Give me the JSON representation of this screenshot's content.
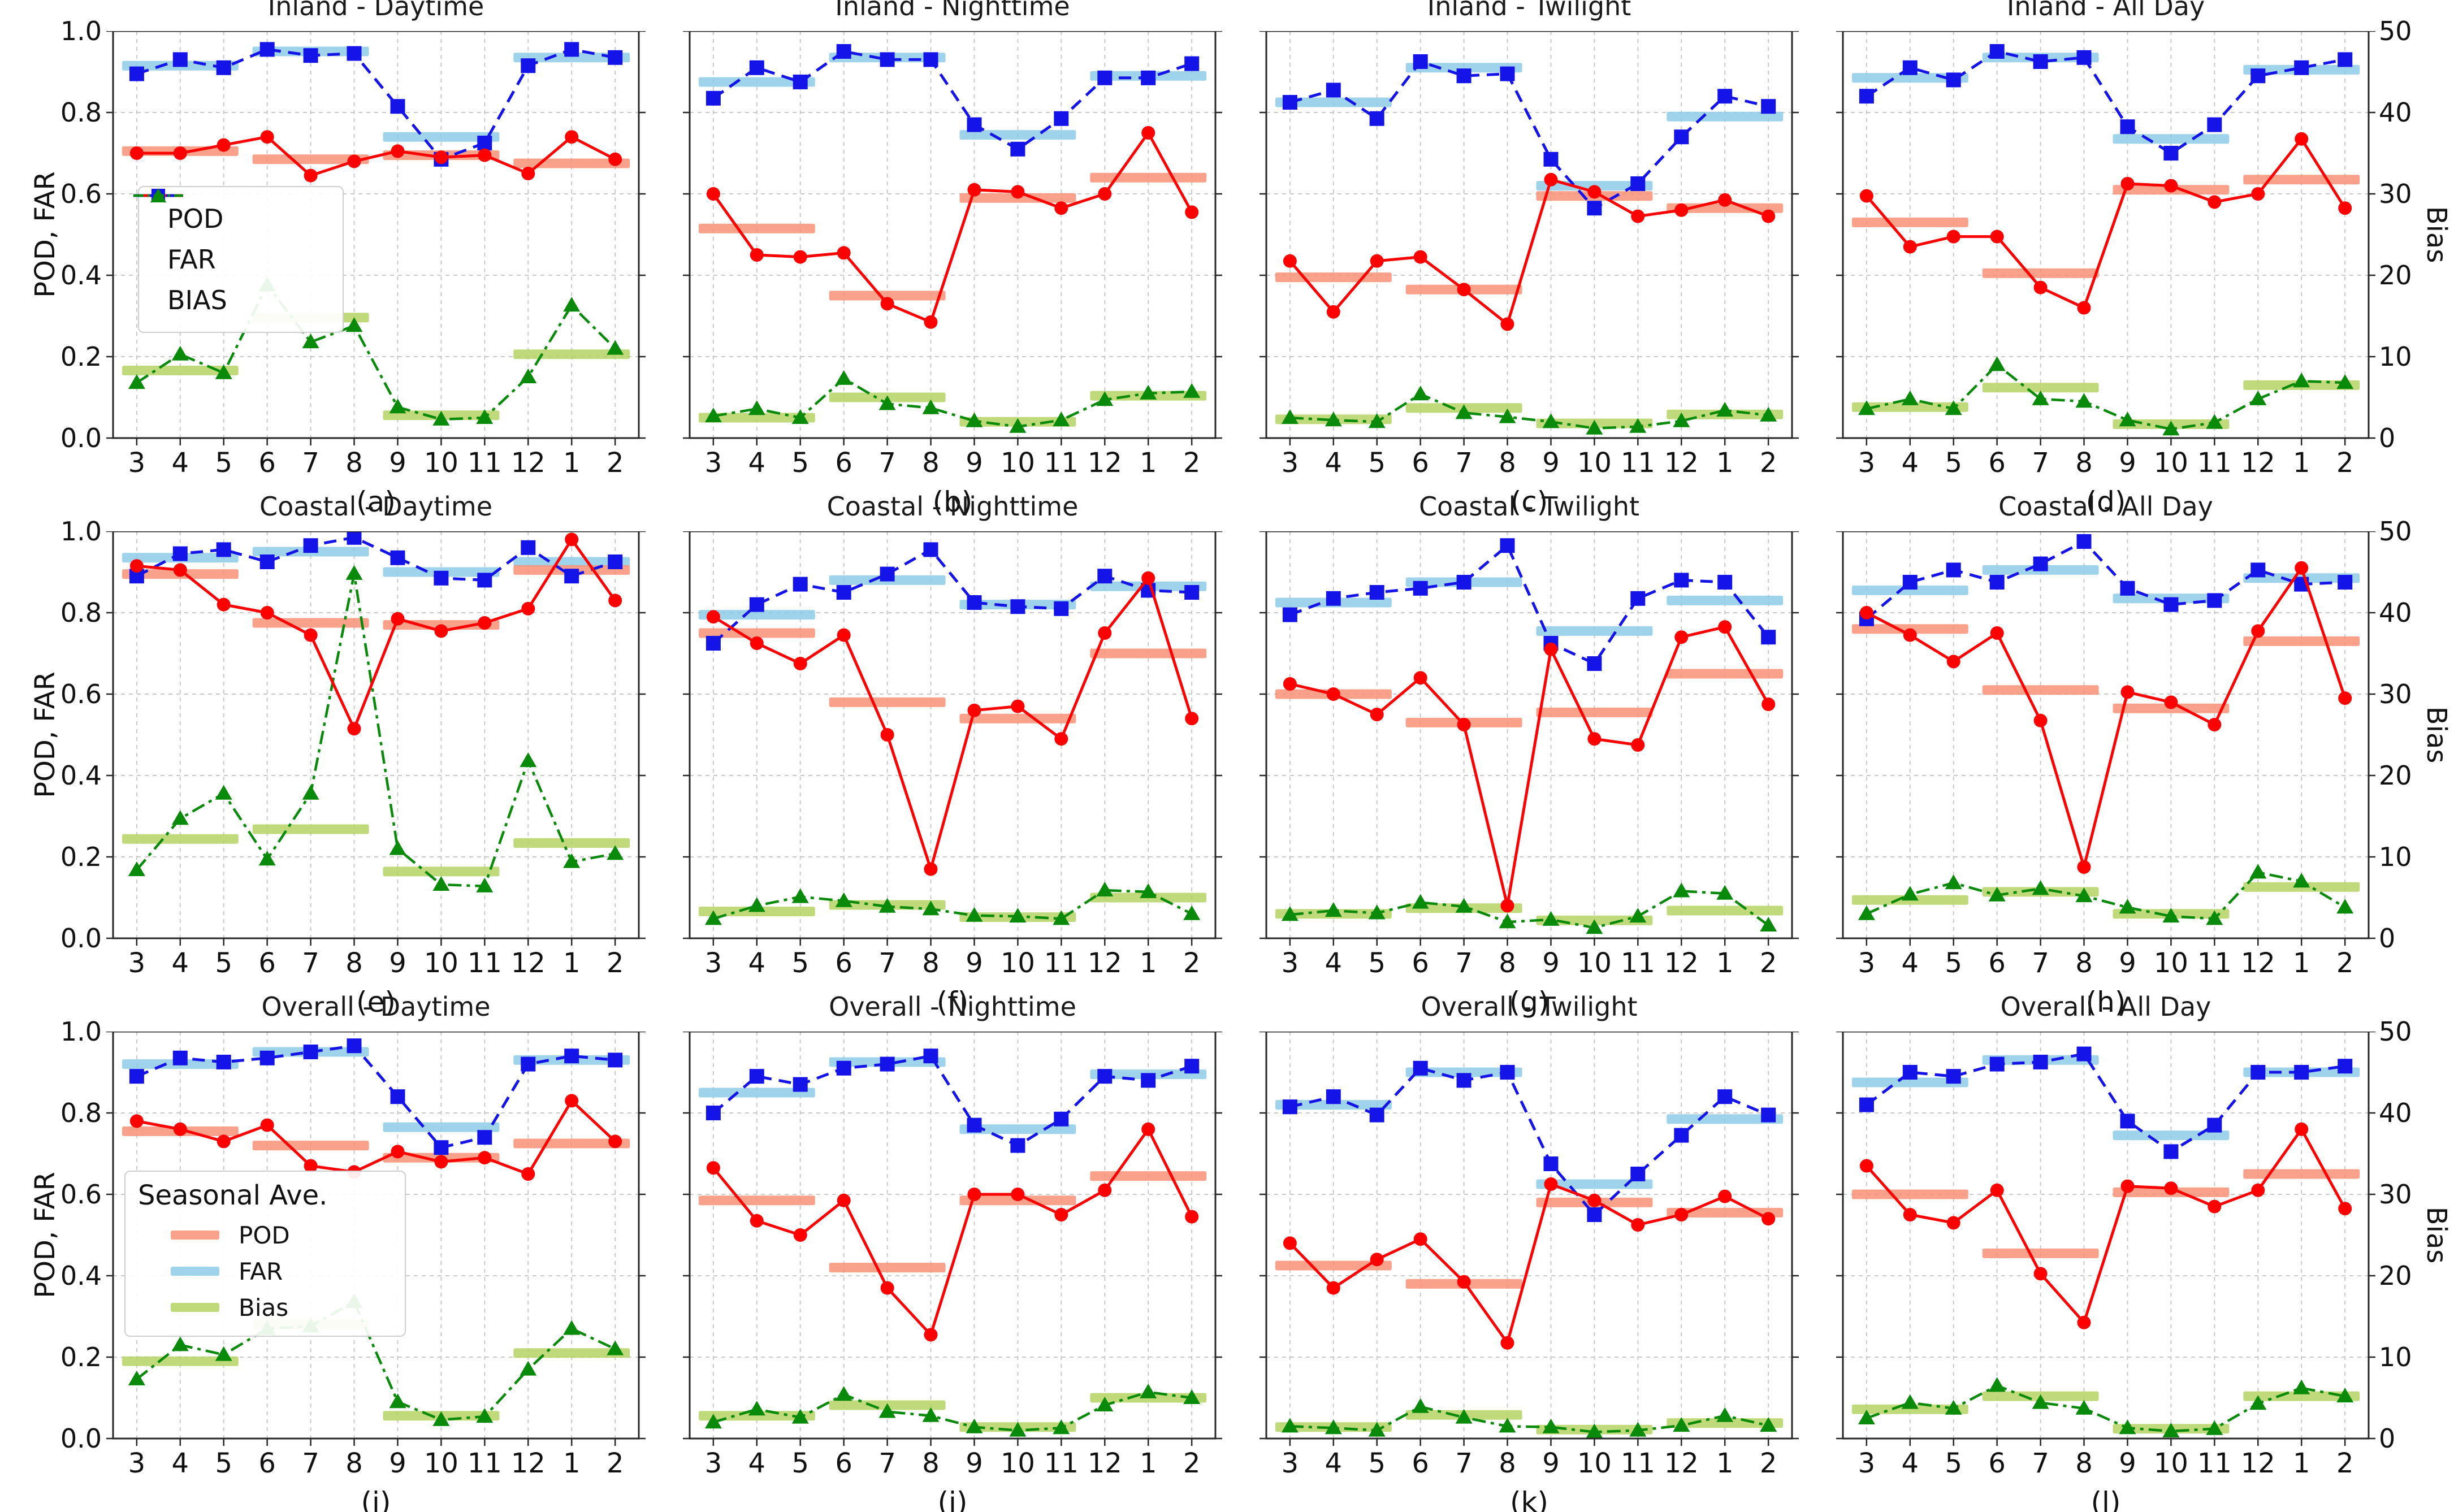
{
  "axes": {
    "ylabel_left": "POD, FAR",
    "ylabel_right": "Bias",
    "left_tick_labels": [
      "1.0",
      "0.8",
      "0.6",
      "0.4",
      "0.2",
      "0.0"
    ],
    "left_tick_values": [
      1.0,
      0.8,
      0.6,
      0.4,
      0.2,
      0.0
    ],
    "right_tick_labels": [
      "50",
      "40",
      "30",
      "20",
      "10",
      "0"
    ],
    "right_tick_values": [
      50,
      40,
      30,
      20,
      10,
      0
    ]
  },
  "legend_metrics": {
    "entries": [
      {
        "label": "POD",
        "marker": "red-circle-solid-line"
      },
      {
        "label": "FAR",
        "marker": "blue-square-dashed-line"
      },
      {
        "label": "BIAS",
        "marker": "green-triangle-dashdot-line"
      }
    ]
  },
  "legend_seasonal": {
    "title": "Seasonal Ave.",
    "entries": [
      {
        "label": "POD",
        "swatch": "salmon-bar"
      },
      {
        "label": "FAR",
        "swatch": "lightblue-bar"
      },
      {
        "label": "Bias",
        "swatch": "yellowgreen-bar"
      }
    ]
  },
  "colors": {
    "pod": "#ff0000",
    "far": "#1414e8",
    "bias": "#0a8a0a",
    "pod_bar": "#f89076",
    "far_bar": "#8ecbe8",
    "bias_bar": "#b4d264",
    "grid": "#c9c9c9",
    "spine": "#262626",
    "text": "#111111"
  },
  "chart_data": {
    "type": "line",
    "months": [
      "3",
      "4",
      "5",
      "6",
      "7",
      "8",
      "9",
      "10",
      "11",
      "12",
      "1",
      "2"
    ],
    "ylim_left": [
      0,
      1
    ],
    "ylim_right": [
      0,
      50
    ],
    "grid": true,
    "seasons_month_index_ranges": [
      [
        0,
        2
      ],
      [
        3,
        5
      ],
      [
        6,
        8
      ],
      [
        9,
        11
      ]
    ],
    "note": "pod/far on left axis 0-1; bias and bias_seasonal on right axis 0-50; seasonal arrays are the 4 horizontal average bars (spring 3-5, summer 6-8, autumn 9-11, winter 12-2)",
    "panels": [
      {
        "caption": "(a)",
        "title": "Inland - Daytime",
        "region": "Inland",
        "period": "Daytime",
        "pod": [
          0.7,
          0.7,
          0.72,
          0.74,
          0.645,
          0.68,
          0.705,
          0.69,
          0.695,
          0.65,
          0.74,
          0.685
        ],
        "far": [
          0.895,
          0.93,
          0.91,
          0.955,
          0.94,
          0.945,
          0.815,
          0.685,
          0.725,
          0.915,
          0.955,
          0.935
        ],
        "bias": [
          6.8,
          10.3,
          8.0,
          18.8,
          11.8,
          13.8,
          3.8,
          2.3,
          2.5,
          7.5,
          16.3,
          11.0
        ],
        "pod_seasonal": [
          0.705,
          0.685,
          0.695,
          0.675
        ],
        "far_seasonal": [
          0.915,
          0.95,
          0.74,
          0.935
        ],
        "bias_seasonal": [
          8.3,
          14.8,
          2.8,
          10.3
        ]
      },
      {
        "caption": "(b)",
        "title": "Inland - Nighttime",
        "region": "Inland",
        "period": "Nighttime",
        "pod": [
          0.6,
          0.45,
          0.445,
          0.455,
          0.33,
          0.285,
          0.61,
          0.605,
          0.565,
          0.6,
          0.75,
          0.555
        ],
        "far": [
          0.835,
          0.91,
          0.875,
          0.95,
          0.93,
          0.93,
          0.77,
          0.71,
          0.785,
          0.885,
          0.885,
          0.92
        ],
        "bias": [
          2.7,
          3.6,
          2.5,
          7.3,
          4.2,
          3.7,
          2.1,
          1.4,
          2.2,
          4.7,
          5.5,
          5.7
        ],
        "pod_seasonal": [
          0.515,
          0.35,
          0.59,
          0.64
        ],
        "far_seasonal": [
          0.875,
          0.935,
          0.745,
          0.89
        ],
        "bias_seasonal": [
          2.5,
          5.0,
          2.0,
          5.2
        ]
      },
      {
        "caption": "(c)",
        "title": "Inland - Twilight",
        "region": "Inland",
        "period": "Twilight",
        "pod": [
          0.435,
          0.31,
          0.435,
          0.445,
          0.365,
          0.28,
          0.635,
          0.605,
          0.545,
          0.56,
          0.585,
          0.545
        ],
        "far": [
          0.825,
          0.855,
          0.785,
          0.925,
          0.89,
          0.895,
          0.685,
          0.565,
          0.625,
          0.74,
          0.84,
          0.815
        ],
        "bias": [
          2.5,
          2.2,
          2.0,
          5.4,
          3.1,
          2.6,
          2.0,
          1.2,
          1.4,
          2.1,
          3.4,
          2.8
        ],
        "pod_seasonal": [
          0.395,
          0.365,
          0.595,
          0.565
        ],
        "far_seasonal": [
          0.825,
          0.91,
          0.62,
          0.79
        ],
        "bias_seasonal": [
          2.3,
          3.7,
          1.8,
          2.9
        ]
      },
      {
        "caption": "(d)",
        "title": "Inland - All Day",
        "region": "Inland",
        "period": "All Day",
        "pod": [
          0.595,
          0.47,
          0.495,
          0.495,
          0.37,
          0.32,
          0.625,
          0.62,
          0.58,
          0.6,
          0.735,
          0.565
        ],
        "far": [
          0.84,
          0.91,
          0.88,
          0.95,
          0.925,
          0.935,
          0.765,
          0.7,
          0.77,
          0.89,
          0.91,
          0.93
        ],
        "bias": [
          3.6,
          4.8,
          3.6,
          9.0,
          4.8,
          4.5,
          2.2,
          1.1,
          1.9,
          4.8,
          7.0,
          6.8
        ],
        "pod_seasonal": [
          0.53,
          0.405,
          0.61,
          0.635
        ],
        "far_seasonal": [
          0.885,
          0.935,
          0.735,
          0.905
        ],
        "bias_seasonal": [
          3.8,
          6.2,
          1.7,
          6.5
        ]
      },
      {
        "caption": "(e)",
        "title": "Coastal - Daytime",
        "region": "Coastal",
        "period": "Daytime",
        "pod": [
          0.915,
          0.905,
          0.82,
          0.8,
          0.745,
          0.515,
          0.785,
          0.755,
          0.775,
          0.81,
          0.98,
          0.83
        ],
        "far": [
          0.89,
          0.945,
          0.955,
          0.925,
          0.965,
          0.985,
          0.935,
          0.885,
          0.88,
          0.96,
          0.89,
          0.925
        ],
        "bias": [
          8.4,
          14.7,
          17.8,
          9.7,
          17.8,
          44.8,
          11.0,
          6.6,
          6.4,
          21.8,
          9.4,
          10.4
        ],
        "pod_seasonal": [
          0.895,
          0.775,
          0.77,
          0.905
        ],
        "far_seasonal": [
          0.935,
          0.95,
          0.9,
          0.925
        ],
        "bias_seasonal": [
          12.2,
          13.4,
          8.2,
          11.7
        ]
      },
      {
        "caption": "(f)",
        "title": "Coastal - Nighttime",
        "region": "Coastal",
        "period": "Nighttime",
        "pod": [
          0.79,
          0.725,
          0.675,
          0.745,
          0.5,
          0.17,
          0.56,
          0.57,
          0.49,
          0.75,
          0.885,
          0.54
        ],
        "far": [
          0.725,
          0.82,
          0.87,
          0.85,
          0.895,
          0.955,
          0.825,
          0.815,
          0.81,
          0.89,
          0.855,
          0.85
        ],
        "bias": [
          2.4,
          4.0,
          5.1,
          4.6,
          3.9,
          3.6,
          2.8,
          2.7,
          2.4,
          5.9,
          5.7,
          3.0
        ],
        "pod_seasonal": [
          0.75,
          0.58,
          0.54,
          0.7
        ],
        "far_seasonal": [
          0.795,
          0.88,
          0.82,
          0.865
        ],
        "bias_seasonal": [
          3.3,
          4.1,
          2.6,
          5.0
        ]
      },
      {
        "caption": "(g)",
        "title": "Coastal - Twilight",
        "region": "Coastal",
        "period": "Twilight",
        "pod": [
          0.625,
          0.6,
          0.55,
          0.64,
          0.525,
          0.08,
          0.71,
          0.49,
          0.475,
          0.74,
          0.765,
          0.575
        ],
        "far": [
          0.795,
          0.835,
          0.85,
          0.86,
          0.875,
          0.965,
          0.725,
          0.675,
          0.835,
          0.88,
          0.875,
          0.74
        ],
        "bias": [
          2.9,
          3.4,
          3.1,
          4.4,
          3.9,
          2.0,
          2.3,
          1.3,
          2.7,
          5.8,
          5.5,
          1.6
        ],
        "pod_seasonal": [
          0.6,
          0.53,
          0.555,
          0.65
        ],
        "far_seasonal": [
          0.825,
          0.875,
          0.755,
          0.83
        ],
        "bias_seasonal": [
          3.0,
          3.7,
          2.2,
          3.4
        ]
      },
      {
        "caption": "(h)",
        "title": "Coastal - All Day",
        "region": "Coastal",
        "period": "All Day",
        "pod": [
          0.8,
          0.745,
          0.68,
          0.75,
          0.535,
          0.175,
          0.605,
          0.58,
          0.525,
          0.755,
          0.91,
          0.59
        ],
        "far": [
          0.785,
          0.875,
          0.905,
          0.875,
          0.92,
          0.975,
          0.86,
          0.82,
          0.83,
          0.905,
          0.87,
          0.875
        ],
        "bias": [
          3.0,
          5.4,
          6.8,
          5.3,
          6.1,
          5.2,
          3.8,
          2.7,
          2.4,
          8.1,
          7.0,
          3.8
        ],
        "pod_seasonal": [
          0.76,
          0.61,
          0.565,
          0.73
        ],
        "far_seasonal": [
          0.855,
          0.905,
          0.835,
          0.885
        ],
        "bias_seasonal": [
          4.7,
          5.7,
          3.0,
          6.3
        ]
      },
      {
        "caption": "(i)",
        "title": "Overall - Daytime",
        "region": "Overall",
        "period": "Daytime",
        "pod": [
          0.78,
          0.76,
          0.73,
          0.77,
          0.67,
          0.655,
          0.705,
          0.68,
          0.69,
          0.65,
          0.83,
          0.73
        ],
        "far": [
          0.89,
          0.935,
          0.925,
          0.935,
          0.95,
          0.965,
          0.84,
          0.715,
          0.74,
          0.92,
          0.94,
          0.93
        ],
        "bias": [
          7.3,
          11.5,
          10.3,
          13.5,
          13.8,
          16.8,
          4.5,
          2.3,
          2.7,
          8.5,
          13.5,
          11.0
        ],
        "pod_seasonal": [
          0.755,
          0.72,
          0.69,
          0.725
        ],
        "far_seasonal": [
          0.92,
          0.95,
          0.765,
          0.93
        ],
        "bias_seasonal": [
          9.5,
          14.0,
          2.8,
          10.5
        ]
      },
      {
        "caption": "(j)",
        "title": "Overall - Nighttime",
        "region": "Overall",
        "period": "Nighttime",
        "pod": [
          0.665,
          0.535,
          0.5,
          0.585,
          0.37,
          0.255,
          0.6,
          0.6,
          0.55,
          0.61,
          0.76,
          0.545
        ],
        "far": [
          0.8,
          0.89,
          0.87,
          0.91,
          0.92,
          0.94,
          0.77,
          0.72,
          0.785,
          0.89,
          0.88,
          0.915
        ],
        "bias": [
          2.0,
          3.6,
          2.6,
          5.4,
          3.3,
          2.8,
          1.4,
          1.0,
          1.3,
          4.1,
          5.7,
          5.0
        ],
        "pod_seasonal": [
          0.585,
          0.42,
          0.585,
          0.645
        ],
        "far_seasonal": [
          0.85,
          0.925,
          0.76,
          0.895
        ],
        "bias_seasonal": [
          2.8,
          4.1,
          1.4,
          5.0
        ]
      },
      {
        "caption": "(k)",
        "title": "Overall - Twilight",
        "region": "Overall",
        "period": "Twilight",
        "pod": [
          0.48,
          0.37,
          0.44,
          0.49,
          0.385,
          0.235,
          0.625,
          0.585,
          0.525,
          0.55,
          0.595,
          0.54
        ],
        "far": [
          0.815,
          0.84,
          0.795,
          0.91,
          0.88,
          0.9,
          0.675,
          0.55,
          0.65,
          0.745,
          0.84,
          0.795
        ],
        "bias": [
          1.5,
          1.3,
          1.0,
          3.9,
          2.6,
          1.5,
          1.4,
          0.8,
          1.0,
          1.6,
          2.8,
          1.6
        ],
        "pod_seasonal": [
          0.425,
          0.38,
          0.58,
          0.555
        ],
        "far_seasonal": [
          0.82,
          0.9,
          0.625,
          0.785
        ],
        "bias_seasonal": [
          1.4,
          2.9,
          1.1,
          1.9
        ]
      },
      {
        "caption": "(l)",
        "title": "Overall - All Day",
        "region": "Overall",
        "period": "All Day",
        "pod": [
          0.67,
          0.55,
          0.53,
          0.61,
          0.405,
          0.285,
          0.62,
          0.615,
          0.57,
          0.61,
          0.76,
          0.565
        ],
        "far": [
          0.82,
          0.9,
          0.89,
          0.92,
          0.925,
          0.945,
          0.78,
          0.705,
          0.77,
          0.9,
          0.9,
          0.915
        ],
        "bias": [
          2.5,
          4.4,
          3.7,
          6.5,
          4.4,
          3.7,
          1.3,
          0.9,
          1.2,
          4.3,
          6.2,
          5.2
        ],
        "pod_seasonal": [
          0.6,
          0.455,
          0.605,
          0.65
        ],
        "far_seasonal": [
          0.875,
          0.93,
          0.745,
          0.9
        ],
        "bias_seasonal": [
          3.6,
          5.2,
          1.2,
          5.2
        ]
      }
    ]
  }
}
